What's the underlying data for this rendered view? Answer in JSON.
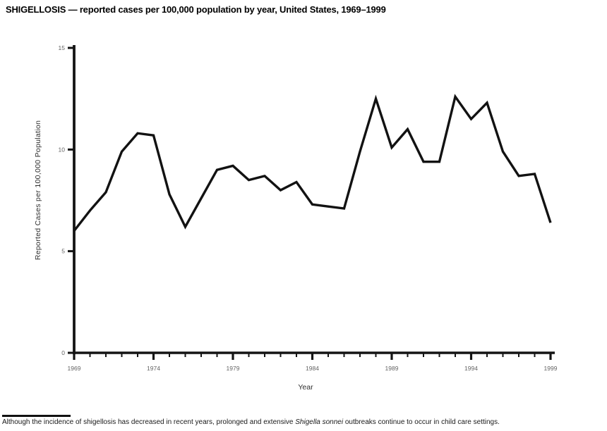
{
  "page": {
    "title": "SHIGELLOSIS — reported cases per 100,000 population by year, United States, 1969–1999"
  },
  "footnote": {
    "part1": "Although the incidence of shigellosis has decreased in recent years, prolonged and extensive ",
    "italic": "Shigella sonnei",
    "part2": " outbreaks continue to occur in child care settings."
  },
  "chart_data": {
    "type": "line",
    "title": "SHIGELLOSIS — reported cases per 100,000 population by year, United States, 1969–1999",
    "xlabel": "Year",
    "ylabel": "Reported Cases per 100,000 Population",
    "x": [
      1969,
      1970,
      1971,
      1972,
      1973,
      1974,
      1975,
      1976,
      1977,
      1978,
      1979,
      1980,
      1981,
      1982,
      1983,
      1984,
      1985,
      1986,
      1987,
      1988,
      1989,
      1990,
      1991,
      1992,
      1993,
      1994,
      1995,
      1996,
      1997,
      1998,
      1999
    ],
    "values": [
      6.0,
      7.0,
      7.9,
      9.9,
      10.8,
      10.7,
      7.8,
      6.2,
      7.6,
      9.0,
      9.2,
      8.5,
      8.7,
      8.0,
      8.4,
      7.3,
      7.2,
      7.1,
      9.9,
      12.5,
      10.1,
      11.0,
      9.4,
      9.4,
      12.6,
      11.5,
      12.3,
      9.9,
      8.7,
      8.8,
      6.4
    ],
    "ylim": [
      0,
      15
    ],
    "yticks": [
      0,
      5,
      10,
      15
    ],
    "xticks_major": [
      1969,
      1974,
      1979,
      1984,
      1989,
      1994,
      1999
    ],
    "xlim": [
      1969,
      1999
    ],
    "grid": false,
    "legend": "none",
    "line_color": "#121212",
    "axis_color": "#141414",
    "tick_label_color": "#636363",
    "axis_title_color": "#2e2e2e"
  }
}
